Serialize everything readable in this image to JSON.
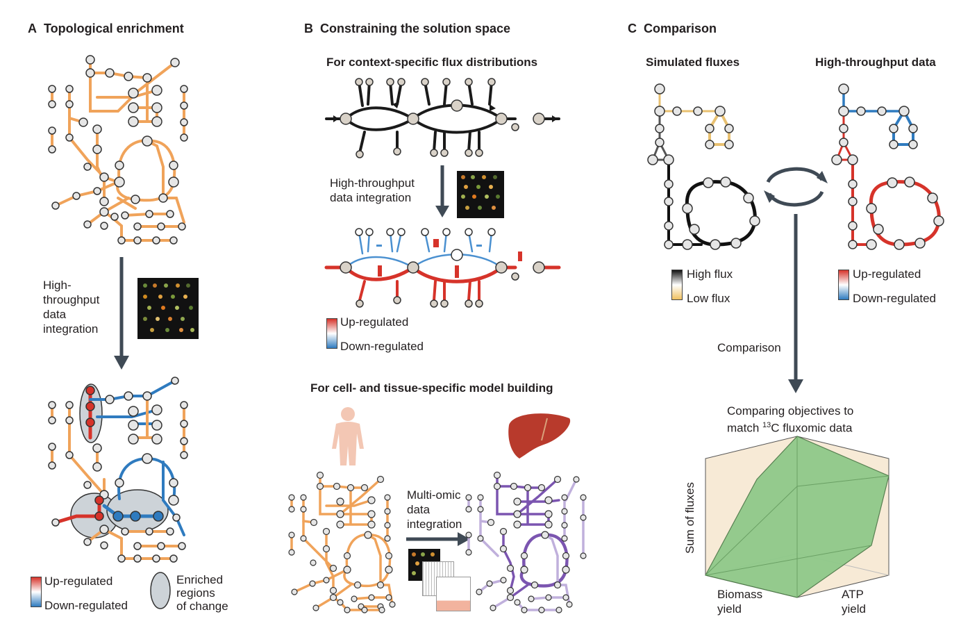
{
  "panels": {
    "A": {
      "letter": "A",
      "title": "Topological enrichment",
      "arrow_label": "High-\nthroughput\ndata\nintegration",
      "legend": {
        "up": "Up-regulated",
        "down": "Down-regulated",
        "enriched": "Enriched\nregions\nof change"
      }
    },
    "B": {
      "letter": "B",
      "title": "Constraining the solution space",
      "subtitle_top": "For context-specific flux distributions",
      "arrow_label": "High-throughput\ndata integration",
      "legend": {
        "up": "Up-regulated",
        "down": "Down-regulated"
      },
      "subtitle_bottom": "For cell- and tissue-specific model building",
      "multiomic_label": "Multi-omic\ndata\nintegration"
    },
    "C": {
      "letter": "C",
      "title": "Comparison",
      "simulated_title": "Simulated fluxes",
      "htp_title": "High-throughput data",
      "legend_flux": {
        "high": "High flux",
        "low": "Low flux"
      },
      "legend_reg": {
        "up": "Up-regulated",
        "down": "Down-regulated"
      },
      "comparison_label": "Comparison",
      "objectives_label_1": "Comparing objectives to",
      "objectives_label_2_pre": "match ",
      "objectives_label_2_sup": "13",
      "objectives_label_2_post": "C fluxomic data",
      "axis_y": "Sum of fluxes",
      "axis_x1": "Biomass\nyield",
      "axis_x2": "ATP\nyield"
    }
  },
  "colors": {
    "orange": "#f0a35a",
    "blue": "#2f7bbf",
    "red": "#d6332a",
    "purple": "#7b55b0",
    "arrow": "#3f4a55",
    "green": "#8fc98a"
  }
}
